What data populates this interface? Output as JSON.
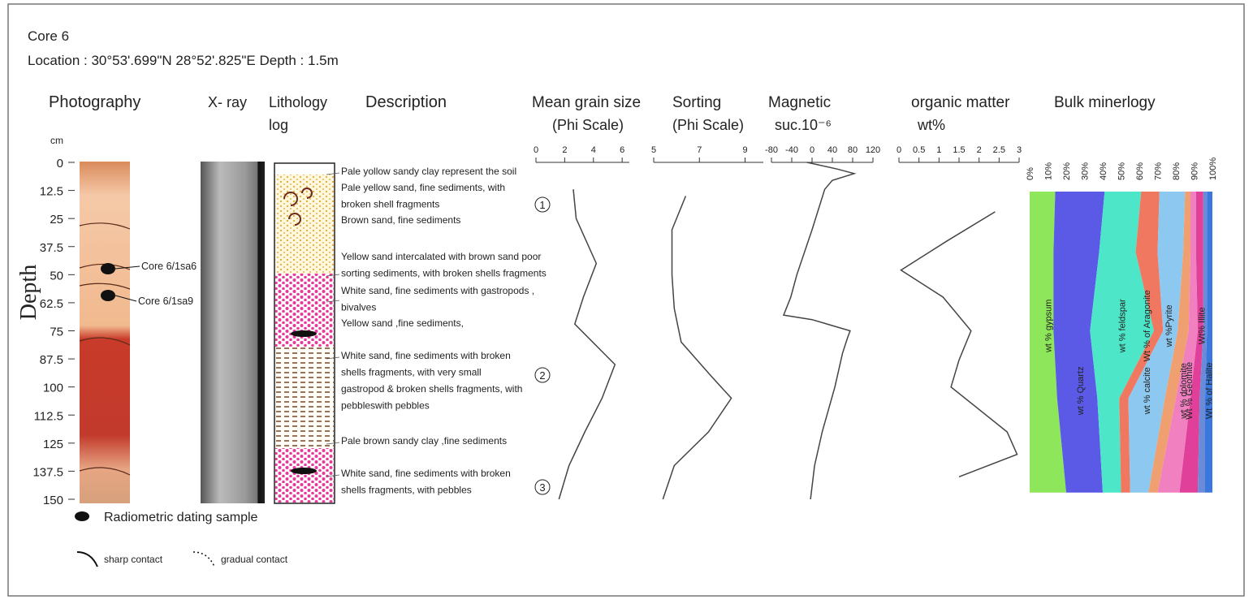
{
  "header": {
    "title": "Core 6",
    "location": "Location : 30°53'.699\"N 28°52'.825\"E Depth : 1.5m"
  },
  "columns": {
    "photography": "Photography",
    "xray": "X- ray",
    "lithology": [
      "Lithology",
      "log"
    ],
    "description": "Description"
  },
  "depth_axis": {
    "label": "Depth",
    "unit": "cm",
    "ylim": [
      0,
      150
    ],
    "yticks": [
      0,
      12.5,
      25,
      37.5,
      50,
      62.5,
      75,
      87.5,
      100,
      112.5,
      125,
      137.5,
      150
    ]
  },
  "samples": [
    "Core 6/1sa6",
    "Core 6/1sa9"
  ],
  "descriptions": [
    [
      "Pale yollow sandy clay represent the soil"
    ],
    [
      "Pale yellow sand, fine sediments, with",
      "broken shell fragments"
    ],
    [
      "Brown sand, fine sediments"
    ],
    [
      "Yellow sand intercalated with brown sand  poor",
      "sorting sediments, with broken shells fragments"
    ],
    [
      "White sand, fine sediments with gastropods ,",
      "bivalves"
    ],
    [
      "Yellow sand ,fine sediments,"
    ],
    [
      "White sand, fine sediments with broken",
      "shells fragments,  with very small",
      "gastropod & broken shells fragments, with",
      "pebbleswith pebbles"
    ],
    [
      "Pale brown sandy clay ,fine sediments"
    ],
    [
      "White sand, fine sediments with broken",
      "shells fragments, with pebbles"
    ]
  ],
  "zones": [
    "1",
    "2",
    "3"
  ],
  "legend": {
    "sample": "Radiometric dating sample",
    "sharp": "sharp contact",
    "gradual": "gradual contact"
  },
  "chart_data": [
    {
      "type": "line",
      "title": "Mean grain size",
      "subtitle": "(Phi Scale)",
      "color": "#444444",
      "xlim": [
        0,
        6.5
      ],
      "xticks": [
        0,
        2,
        4,
        6
      ],
      "depths": [
        12,
        25,
        45,
        60,
        72,
        90,
        105,
        120,
        135,
        150
      ],
      "values": [
        2.6,
        2.8,
        4.2,
        3.3,
        2.7,
        5.5,
        4.6,
        3.4,
        2.3,
        1.6
      ]
    },
    {
      "type": "line",
      "title": "Sorting",
      "subtitle": "(Phi Scale)",
      "color": "#444444",
      "xlim": [
        5,
        9.8
      ],
      "xticks": [
        5,
        7,
        9
      ],
      "depths": [
        15,
        30,
        50,
        65,
        80,
        95,
        105,
        120,
        135,
        150
      ],
      "values": [
        6.4,
        5.8,
        5.8,
        5.9,
        6.2,
        7.5,
        8.4,
        7.4,
        5.9,
        5.4
      ]
    },
    {
      "type": "line",
      "title": "Magnetic",
      "subtitle": "suc.10⁻⁶",
      "color": "#444444",
      "xlim": [
        -80,
        120
      ],
      "xticks": [
        -80,
        -40,
        0,
        40,
        80,
        120
      ],
      "depths": [
        0,
        3,
        5,
        8,
        12,
        30,
        50,
        60,
        68,
        70,
        75,
        78,
        85,
        100,
        120,
        135,
        150
      ],
      "values": [
        -10,
        50,
        83,
        40,
        25,
        0,
        -30,
        -42,
        -56,
        0,
        75,
        70,
        60,
        45,
        20,
        5,
        -3
      ]
    },
    {
      "type": "line",
      "title": "organic matter",
      "subtitle": "wt%",
      "color": "#444444",
      "xlim": [
        0,
        3
      ],
      "xticks": [
        0,
        0.5,
        1,
        1.5,
        2,
        2.5,
        3
      ],
      "depths": [
        22,
        35,
        48,
        60,
        75,
        88,
        100,
        120,
        130,
        140
      ],
      "values": [
        2.4,
        1.2,
        0.05,
        1.1,
        1.8,
        1.5,
        1.3,
        2.7,
        2.95,
        1.5
      ]
    },
    {
      "type": "area",
      "title": "Bulk minerlogy",
      "xlim": [
        0,
        100
      ],
      "xticks": [
        {
          "value": 0,
          "label": "0%"
        },
        {
          "value": 10,
          "label": "10%"
        },
        {
          "value": 20,
          "label": "20%"
        },
        {
          "value": 30,
          "label": "30%"
        },
        {
          "value": 40,
          "label": "40%"
        },
        {
          "value": 50,
          "label": "50%"
        },
        {
          "value": 60,
          "label": "60%"
        },
        {
          "value": 70,
          "label": "70%"
        },
        {
          "value": 80,
          "label": "80%"
        },
        {
          "value": 90,
          "label": "90%"
        },
        {
          "value": 100,
          "label": "100%"
        }
      ],
      "depths": [
        13,
        40,
        75,
        105,
        147
      ],
      "series": [
        {
          "name": "wt % gypsum",
          "color": "#8ee65a",
          "values": [
            14,
            13,
            13,
            15,
            20
          ]
        },
        {
          "name": "wt % Quartz",
          "color": "#5a5ae6",
          "values": [
            27,
            25,
            20,
            22,
            20
          ]
        },
        {
          "name": "wt % feldspar",
          "color": "#4de6c8",
          "values": [
            20,
            20,
            35,
            12,
            10
          ]
        },
        {
          "name": "wt % calcite",
          "color": "#f07860",
          "values": [
            10,
            12,
            5,
            5,
            5
          ]
        },
        {
          "name": "Wt % of Aragonite",
          "color": "#8cc8f0",
          "values": [
            14,
            14,
            8,
            20,
            10
          ]
        },
        {
          "name": "wt % dolomite",
          "color": "#f0a070",
          "values": [
            3,
            4,
            6,
            6,
            5
          ]
        },
        {
          "name": "wt %Pyrite",
          "color": "#f080c0",
          "values": [
            3,
            3,
            5,
            8,
            12
          ]
        },
        {
          "name": "Wt % Geothite",
          "color": "#e0409a",
          "values": [
            4,
            4,
            3,
            5,
            10
          ]
        },
        {
          "name": "Wt% Illite",
          "color": "#6a8cd8",
          "values": [
            2,
            2,
            2,
            3,
            4
          ]
        },
        {
          "name": "Wt % of Halite",
          "color": "#3a78e0",
          "values": [
            3,
            3,
            3,
            4,
            4
          ]
        }
      ]
    }
  ]
}
